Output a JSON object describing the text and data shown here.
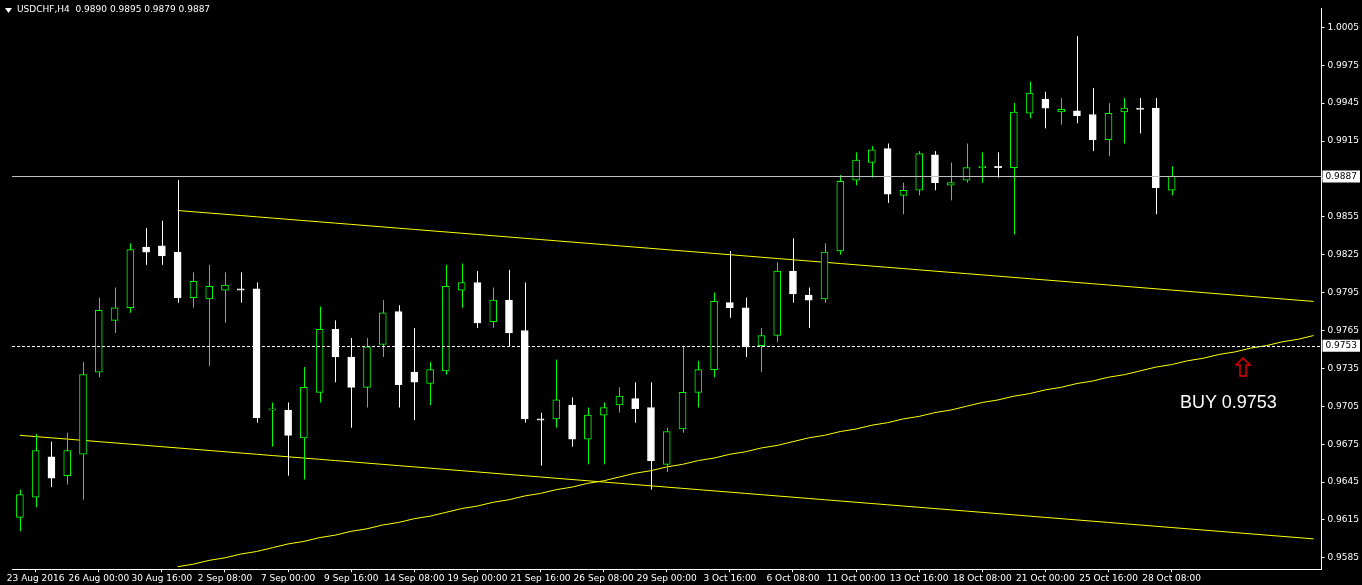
{
  "chart_data": {
    "type": "candlestick",
    "title": "USDCHF,H4  0.9890 0.9895 0.9879 0.9887",
    "colors": [
      "#00ff00",
      "#00ff00",
      "#ffffff",
      "#00ff00",
      "#00ff00",
      "#00ff00",
      "#00ff00",
      "#00ff00",
      "#ffffff",
      "#ffffff",
      "#ffffff",
      "#00ff00",
      "#00ff00",
      "#00ff00",
      "#ffffff",
      "#ffffff",
      "#00ff00",
      "#ffffff",
      "#00ff00",
      "#00ff00",
      "#ffffff",
      "#ffffff",
      "#00ff00",
      "#00ff00",
      "#ffffff",
      "#ffffff",
      "#00ff00",
      "#00ff00",
      "#00ff00",
      "#ffffff",
      "#00ff00",
      "#ffffff",
      "#ffffff",
      "#ffffff",
      "#00ff00",
      "#ffffff",
      "#00ff00",
      "#00ff00",
      "#00ff00",
      "#ffffff",
      "#ffffff",
      "#00ff00",
      "#00ff00",
      "#00ff00",
      "#00ff00",
      "#ffffff",
      "#ffffff",
      "#00ff00",
      "#00ff00",
      "#ffffff",
      "#ffffff",
      "#00ff00",
      "#00ff00",
      "#00ff00",
      "#00ff00",
      "#ffffff",
      "#00ff00",
      "#00ff00",
      "#ffffff",
      "#00ff00",
      "#00ff00",
      "#00ff00",
      "#ffffff",
      "#00ff00",
      "#00ff00",
      "#ffffff",
      "#00ff00",
      "#ffffff",
      "#ffffff",
      "#00ff00",
      "#00ff00",
      "#ffffff",
      "#ffffff",
      "#00ff00",
      null,
      null,
      null,
      null,
      null,
      null,
      null,
      null,
      null
    ],
    "categories": [
      null,
      "23 Aug 2016",
      null,
      null,
      null,
      "26 Aug 00:00",
      null,
      null,
      null,
      "30 Aug 16:00",
      null,
      null,
      null,
      "2 Sep 08:00",
      null,
      null,
      null,
      "7 Sep 00:00",
      null,
      null,
      null,
      "9 Sep 16:00",
      null,
      null,
      null,
      "14 Sep 08:00",
      null,
      null,
      null,
      "19 Sep 00:00",
      null,
      null,
      null,
      "21 Sep 16:00",
      null,
      null,
      null,
      "26 Sep 08:00",
      null,
      null,
      null,
      "29 Sep 00:00",
      null,
      null,
      null,
      "3 Oct 16:00",
      null,
      null,
      null,
      "6 Oct 08:00",
      null,
      null,
      null,
      "11 Oct 00:00",
      null,
      null,
      null,
      "13 Oct 16:00",
      null,
      null,
      null,
      "18 Oct 08:00",
      null,
      null,
      null,
      "21 Oct 00:00",
      null,
      null,
      null,
      "25 Oct 16:00",
      null,
      null,
      null,
      "28 Oct 08:00",
      null,
      null,
      null,
      null,
      null,
      null,
      null,
      null,
      null
    ],
    "ohlc": [
      [
        0.9617,
        0.9639,
        0.9606,
        0.9635
      ],
      [
        0.9633,
        0.9683,
        0.9625,
        0.967
      ],
      [
        0.9665,
        0.9677,
        0.9641,
        0.9648
      ],
      [
        0.965,
        0.9684,
        0.9643,
        0.967
      ],
      [
        0.9667,
        0.974,
        0.9631,
        0.973
      ],
      [
        0.9732,
        0.9791,
        0.9728,
        0.9781
      ],
      [
        0.9773,
        0.9799,
        0.9763,
        0.9783
      ],
      [
        0.9783,
        0.9834,
        0.9779,
        0.9829
      ],
      [
        0.9831,
        0.9846,
        0.9817,
        0.9827
      ],
      [
        0.9832,
        0.9852,
        0.9817,
        0.9824
      ],
      [
        0.9827,
        0.9884,
        0.9787,
        0.9791
      ],
      [
        0.9791,
        0.9811,
        0.9783,
        0.9804
      ],
      [
        0.979,
        0.9817,
        0.9737,
        0.98
      ],
      [
        0.9797,
        0.9811,
        0.9771,
        0.9801
      ],
      [
        0.9798,
        0.9811,
        0.9787,
        0.9797
      ],
      [
        0.9798,
        0.9803,
        0.9692,
        0.9696
      ],
      [
        0.9702,
        0.9708,
        0.9673,
        0.9703
      ],
      [
        0.9702,
        0.9708,
        0.965,
        0.9682
      ],
      [
        0.968,
        0.9736,
        0.9647,
        0.972
      ],
      [
        0.9716,
        0.9784,
        0.9708,
        0.9766
      ],
      [
        0.9766,
        0.9773,
        0.9724,
        0.9744
      ],
      [
        0.9744,
        0.9759,
        0.9688,
        0.972
      ],
      [
        0.972,
        0.9759,
        0.9704,
        0.9752
      ],
      [
        0.9754,
        0.9789,
        0.9744,
        0.9779
      ],
      [
        0.978,
        0.9785,
        0.9704,
        0.9722
      ],
      [
        0.9732,
        0.9767,
        0.9694,
        0.9724
      ],
      [
        0.9723,
        0.974,
        0.9706,
        0.9734
      ],
      [
        0.9733,
        0.9817,
        0.973,
        0.98
      ],
      [
        0.9797,
        0.9818,
        0.9783,
        0.9803
      ],
      [
        0.9803,
        0.9812,
        0.9767,
        0.9771
      ],
      [
        0.9772,
        0.9799,
        0.9767,
        0.9789
      ],
      [
        0.9789,
        0.9813,
        0.9752,
        0.9763
      ],
      [
        0.9765,
        0.9803,
        0.9692,
        0.9695
      ],
      [
        0.9695,
        0.97,
        0.9658,
        0.9694
      ],
      [
        0.9695,
        0.9742,
        0.9688,
        0.971
      ],
      [
        0.9706,
        0.9712,
        0.9673,
        0.9679
      ],
      [
        0.9679,
        0.9704,
        0.9659,
        0.9698
      ],
      [
        0.9698,
        0.9708,
        0.9659,
        0.9704
      ],
      [
        0.9706,
        0.972,
        0.97,
        0.9713
      ],
      [
        0.9711,
        0.9724,
        0.9692,
        0.9703
      ],
      [
        0.9704,
        0.9724,
        0.9639,
        0.9662
      ],
      [
        0.9659,
        0.9688,
        0.9653,
        0.9685
      ],
      [
        0.9687,
        0.9753,
        0.9684,
        0.9716
      ],
      [
        0.9716,
        0.9741,
        0.9704,
        0.9734
      ],
      [
        0.9734,
        0.9795,
        0.9728,
        0.9788
      ],
      [
        0.9787,
        0.9828,
        0.9775,
        0.9783
      ],
      [
        0.9783,
        0.9791,
        0.9744,
        0.9752
      ],
      [
        0.9753,
        0.9767,
        0.9732,
        0.9761
      ],
      [
        0.9761,
        0.9819,
        0.9756,
        0.9812
      ],
      [
        0.9812,
        0.9838,
        0.9787,
        0.9794
      ],
      [
        0.9793,
        0.9799,
        0.9767,
        0.9789
      ],
      [
        0.979,
        0.9834,
        0.9787,
        0.9827
      ],
      [
        0.9828,
        0.9888,
        0.9825,
        0.9883
      ],
      [
        0.9884,
        0.9906,
        0.988,
        0.99
      ],
      [
        0.9898,
        0.9911,
        0.9886,
        0.9908
      ],
      [
        0.9909,
        0.9913,
        0.9866,
        0.9873
      ],
      [
        0.9872,
        0.9882,
        0.9857,
        0.9876
      ],
      [
        0.9876,
        0.9907,
        0.9872,
        0.9905
      ],
      [
        0.9904,
        0.9907,
        0.9876,
        0.9882
      ],
      [
        0.988,
        0.9898,
        0.9868,
        0.9882
      ],
      [
        0.9884,
        0.9913,
        0.9882,
        0.9894
      ],
      [
        0.9894,
        0.9906,
        0.9882,
        0.9895
      ],
      [
        0.9895,
        0.9906,
        0.9886,
        0.9894
      ],
      [
        0.9894,
        0.9945,
        0.9841,
        0.9938
      ],
      [
        0.9937,
        0.9962,
        0.9933,
        0.9953
      ],
      [
        0.9948,
        0.9954,
        0.9925,
        0.9941
      ],
      [
        0.9938,
        0.9949,
        0.9928,
        0.994
      ],
      [
        0.9939,
        0.9998,
        0.9929,
        0.9935
      ],
      [
        0.9936,
        0.9957,
        0.9907,
        0.9916
      ],
      [
        0.9916,
        0.9945,
        0.9903,
        0.9937
      ],
      [
        0.9938,
        0.9949,
        0.9913,
        0.9941
      ],
      [
        0.9941,
        0.9949,
        0.9921,
        0.994
      ],
      [
        0.9941,
        0.9949,
        0.9857,
        0.9878
      ],
      [
        0.9876,
        0.9895,
        0.9872,
        0.9887
      ],
      null,
      null,
      null,
      null,
      null,
      null,
      null,
      null,
      null
    ],
    "series": [
      {
        "type": "line",
        "color": "#ffff00",
        "values": [
          null,
          null,
          null,
          null,
          null,
          null,
          null,
          null,
          null,
          null,
          0.986,
          0.9859,
          0.9858,
          0.9857,
          0.9856,
          0.9855,
          0.9854,
          0.9853,
          0.9852,
          0.9851,
          0.985,
          0.9849,
          0.9848,
          0.9847,
          0.9846,
          0.9845,
          0.9844,
          0.9843,
          0.9842,
          0.9841,
          0.984,
          0.9839,
          0.9838,
          0.9837,
          0.9836,
          0.9835,
          0.9834,
          0.9833,
          0.9832,
          0.9831,
          0.983,
          0.9829,
          0.9828,
          0.9827,
          0.9826,
          0.9825,
          0.9824,
          0.9823,
          0.9822,
          0.9821,
          0.982,
          0.9819,
          0.9818,
          0.9817,
          0.9816,
          0.9815,
          0.9814,
          0.9813,
          0.9812,
          0.9811,
          0.981,
          0.9809,
          0.9808,
          0.9807,
          0.9806,
          0.9805,
          0.9804,
          0.9803,
          0.9802,
          0.9801,
          0.98,
          0.9799,
          0.9798,
          0.9797,
          0.9796,
          0.9795,
          0.9794,
          0.9793,
          0.9792,
          0.9791,
          0.979,
          0.9789,
          0.9788
        ]
      },
      {
        "type": "line",
        "color": "#ffff00",
        "values": [
          0.9682,
          0.9681,
          0.968,
          0.9679,
          0.9678,
          0.9677,
          0.9676,
          0.9675,
          0.9674,
          0.9673,
          0.9672,
          0.9671,
          0.967,
          0.9669,
          0.9668,
          0.9667,
          0.9666,
          0.9665,
          0.9664,
          0.9663,
          0.9662,
          0.9661,
          0.966,
          0.9659,
          0.9658,
          0.9657,
          0.9656,
          0.9655,
          0.9654,
          0.9653,
          0.9652,
          0.9651,
          0.965,
          0.9649,
          0.9648,
          0.9647,
          0.9646,
          0.9645,
          0.9644,
          0.9643,
          0.9642,
          0.9641,
          0.964,
          0.9639,
          0.9638,
          0.9637,
          0.9636,
          0.9635,
          0.9634,
          0.9633,
          0.9632,
          0.9631,
          0.963,
          0.9629,
          0.9628,
          0.9627,
          0.9626,
          0.9625,
          0.9624,
          0.9623,
          0.9622,
          0.9621,
          0.962,
          0.9619,
          0.9618,
          0.9617,
          0.9616,
          0.9615,
          0.9614,
          0.9613,
          0.9612,
          0.9611,
          0.961,
          0.9609,
          0.9608,
          0.9607,
          0.9606,
          0.9605,
          0.9604,
          0.9603,
          0.9602,
          0.9601,
          0.96
        ]
      },
      {
        "type": "line",
        "color": "#ffff00",
        "values": [
          null,
          null,
          null,
          null,
          null,
          null,
          null,
          null,
          null,
          null,
          0.9578,
          0.958,
          0.9583,
          0.9585,
          0.9588,
          0.959,
          0.9593,
          0.9596,
          0.9598,
          0.9601,
          0.9603,
          0.9606,
          0.9608,
          0.9611,
          0.9613,
          0.9616,
          0.9618,
          0.9621,
          0.9624,
          0.9626,
          0.9629,
          0.9631,
          0.9634,
          0.9636,
          0.9639,
          0.9641,
          0.9644,
          0.9646,
          0.9649,
          0.9652,
          0.9654,
          0.9657,
          0.9659,
          0.9662,
          0.9664,
          0.9667,
          0.9669,
          0.9672,
          0.9674,
          0.9677,
          0.968,
          0.9682,
          0.9685,
          0.9687,
          0.969,
          0.9692,
          0.9695,
          0.9697,
          0.97,
          0.9702,
          0.9705,
          0.9708,
          0.971,
          0.9713,
          0.9715,
          0.9718,
          0.972,
          0.9723,
          0.9725,
          0.9728,
          0.973,
          0.9733,
          0.9736,
          0.9738,
          0.9741,
          0.9743,
          0.9746,
          0.9748,
          0.9751,
          0.9753,
          0.9756,
          0.9758,
          0.9761
        ]
      }
    ],
    "ylim": [
      0.9576,
      1.002
    ],
    "yticks": [
      0.9585,
      0.9615,
      0.9645,
      0.9675,
      0.9705,
      0.9735,
      0.9765,
      0.9795,
      0.9825,
      0.9855,
      {
        "value": 0.9885,
        "label": null
      },
      0.9915,
      0.9945,
      0.9975,
      1.0005
    ],
    "ref_lines": [
      {
        "axis": "y",
        "value": 0.9887,
        "label": "0.9887",
        "color": "#c0c0c0",
        "line_style": "solid"
      },
      {
        "axis": "y",
        "value": 0.9753,
        "label": "0.9753",
        "color": "#ffffff",
        "line_style": "dashed"
      }
    ],
    "annotations": [
      "BUY 0.9753"
    ],
    "grid": false,
    "legend": false
  }
}
